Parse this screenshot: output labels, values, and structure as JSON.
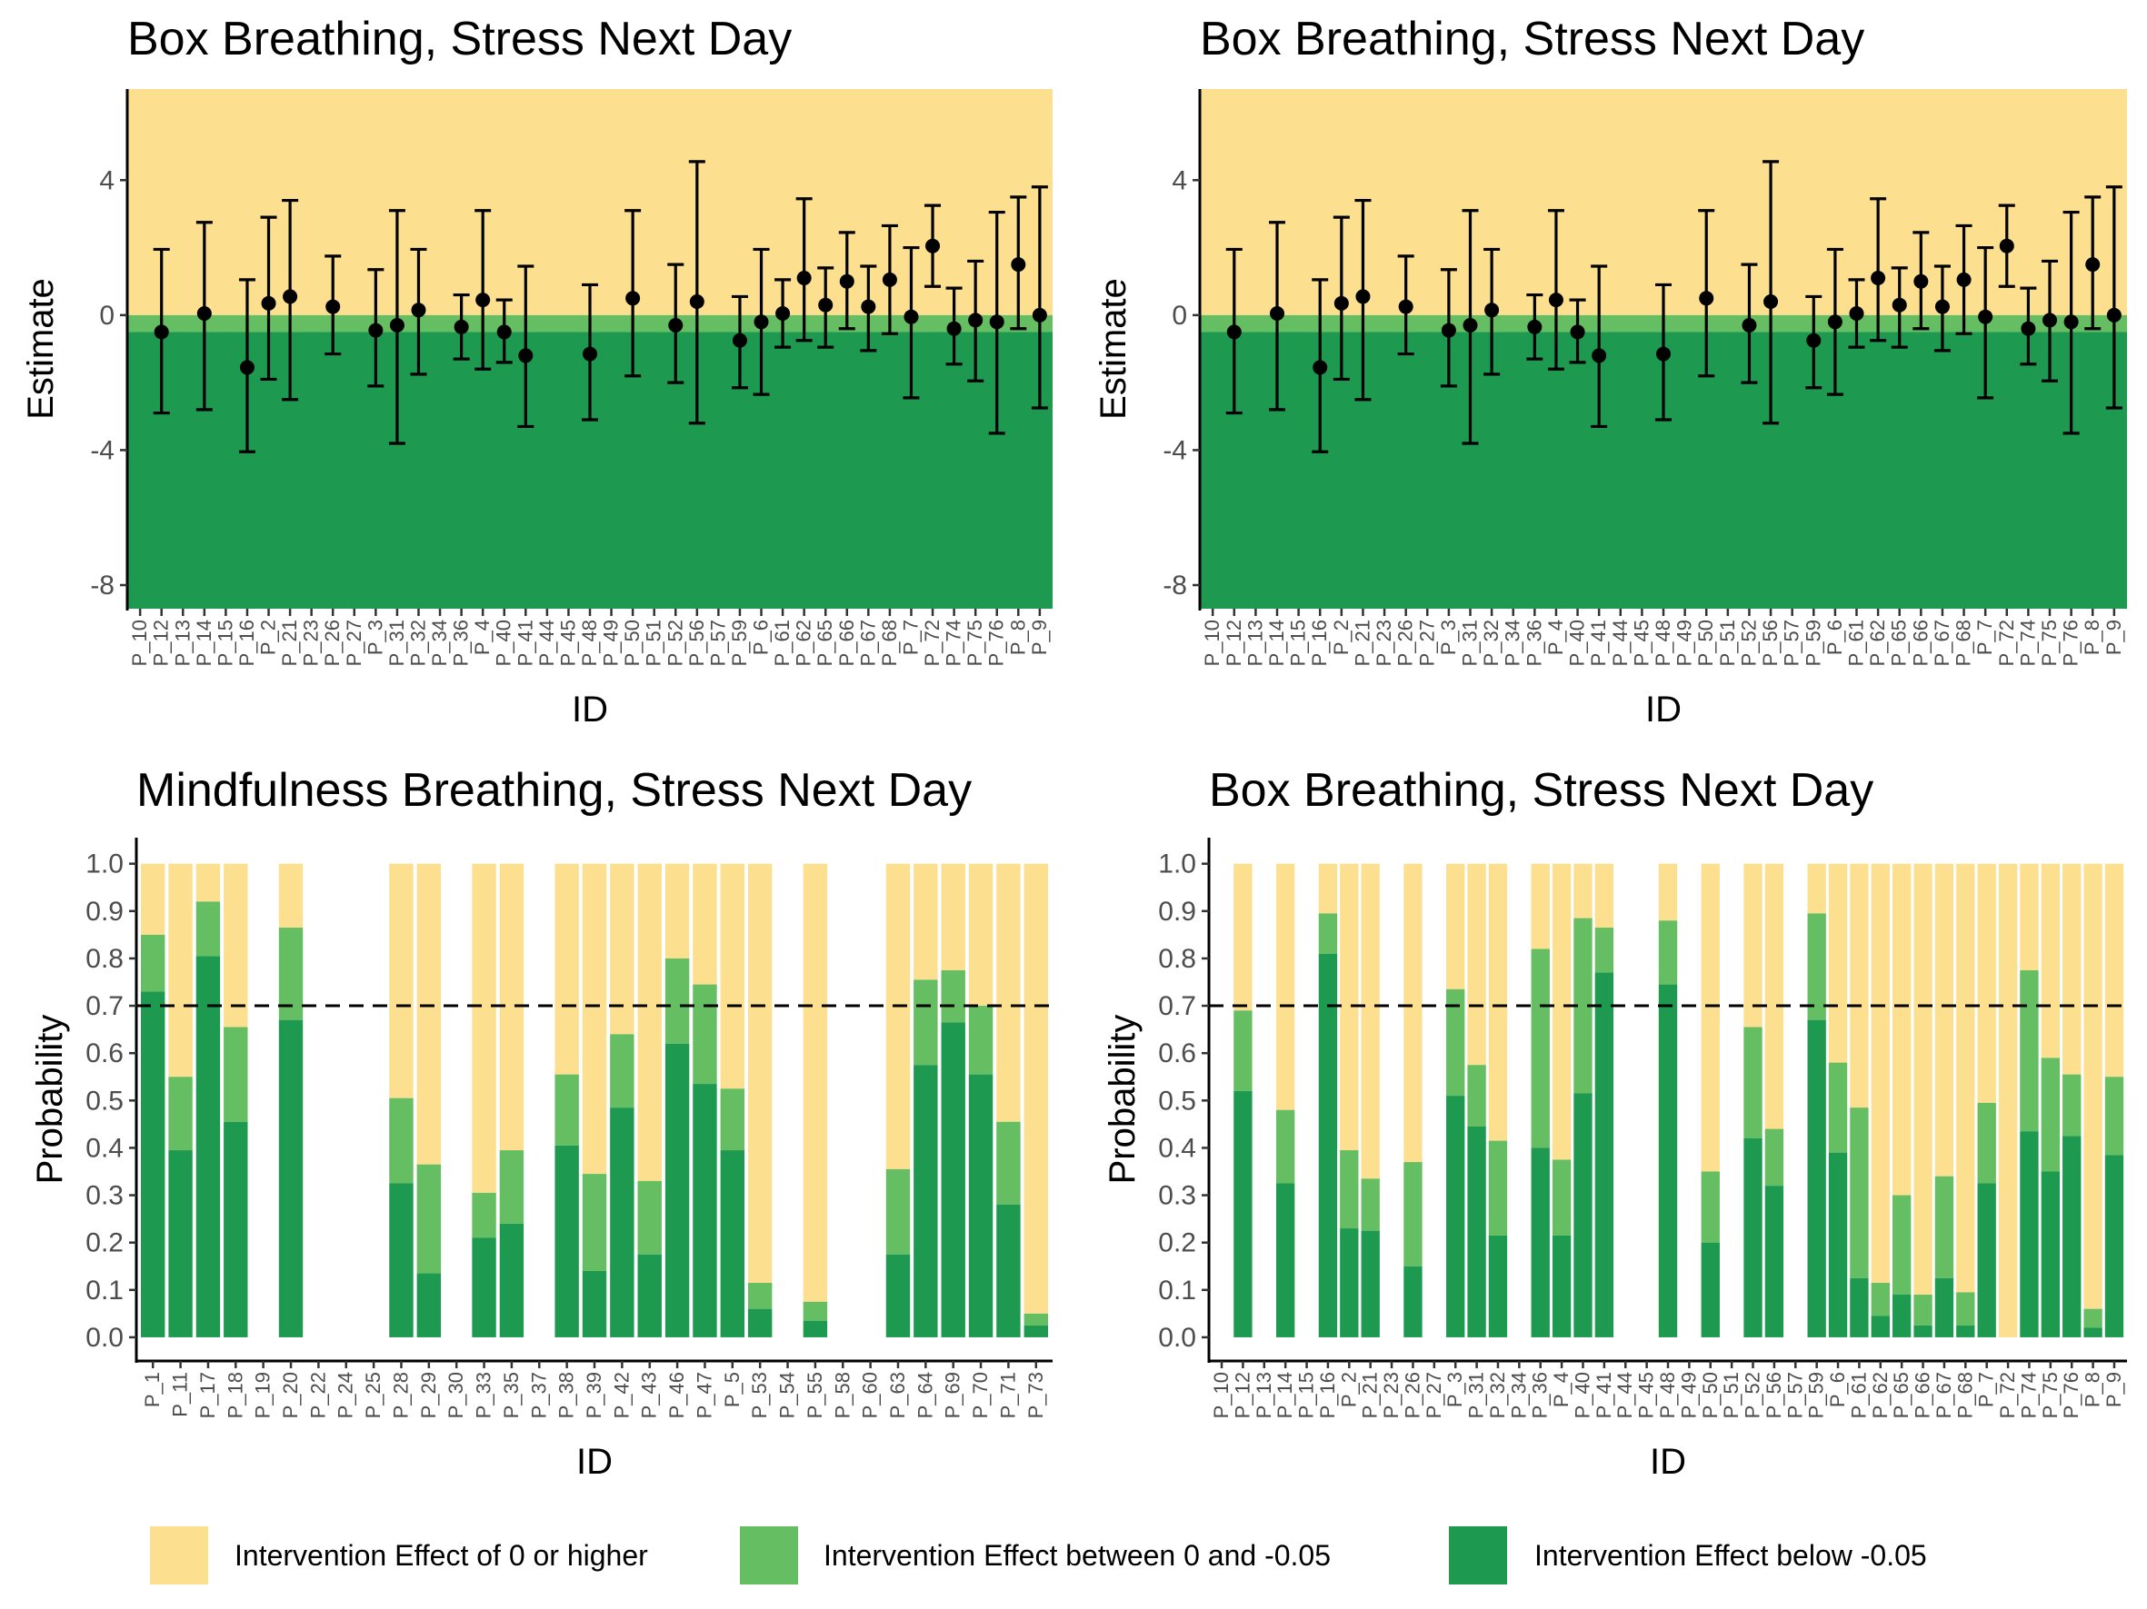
{
  "colors": {
    "high": "#FDDF90",
    "mid": "#66BE62",
    "low": "#1E9A50",
    "point": "#000000",
    "threshold_line": "#000000"
  },
  "legend": {
    "placement": "bottom",
    "items": [
      {
        "key": "high",
        "label": "Intervention Effect of 0 or higher"
      },
      {
        "key": "mid",
        "label": "Intervention Effect between 0 and -0.05"
      },
      {
        "key": "low",
        "label": "Intervention Effect below -0.05"
      }
    ]
  },
  "chart_data": [
    {
      "type": "scatter",
      "title": "Box Breathing, Stress Next Day",
      "xlabel": "ID",
      "ylabel": "Estimate",
      "ylim": [
        -8.7,
        6.7
      ],
      "yticks": [
        4,
        0,
        -4,
        -8
      ],
      "bands": [
        {
          "from": 0,
          "to": 6.7,
          "color": "high"
        },
        {
          "from": -0.5,
          "to": 0,
          "color": "mid"
        },
        {
          "from": -8.7,
          "to": -0.5,
          "color": "low"
        }
      ],
      "categories": [
        "P_10",
        "P_12",
        "P_13",
        "P_14",
        "P_15",
        "P_16",
        "P_2",
        "P_21",
        "P_23",
        "P_26",
        "P_27",
        "P_3",
        "P_31",
        "P_32",
        "P_34",
        "P_36",
        "P_4",
        "P_40",
        "P_41",
        "P_44",
        "P_45",
        "P_48",
        "P_49",
        "P_50",
        "P_51",
        "P_52",
        "P_56",
        "P_57",
        "P_59",
        "P_6",
        "P_61",
        "P_62",
        "P_65",
        "P_66",
        "P_67",
        "P_68",
        "P_7",
        "P_72",
        "P_74",
        "P_75",
        "P_76",
        "P_8",
        "P_9"
      ],
      "points": [
        {
          "id": "P_12",
          "y": -0.5,
          "lo": -2.9,
          "hi": 1.95
        },
        {
          "id": "P_14",
          "y": 0.05,
          "lo": -2.8,
          "hi": 2.75
        },
        {
          "id": "P_16",
          "y": -1.55,
          "lo": -4.05,
          "hi": 1.05
        },
        {
          "id": "P_2",
          "y": 0.35,
          "lo": -1.9,
          "hi": 2.9
        },
        {
          "id": "P_21",
          "y": 0.55,
          "lo": -2.5,
          "hi": 3.4
        },
        {
          "id": "P_26",
          "y": 0.25,
          "lo": -1.15,
          "hi": 1.75
        },
        {
          "id": "P_3",
          "y": -0.45,
          "lo": -2.1,
          "hi": 1.35
        },
        {
          "id": "P_31",
          "y": -0.3,
          "lo": -3.8,
          "hi": 3.1
        },
        {
          "id": "P_32",
          "y": 0.15,
          "lo": -1.75,
          "hi": 1.95
        },
        {
          "id": "P_36",
          "y": -0.35,
          "lo": -1.3,
          "hi": 0.6
        },
        {
          "id": "P_4",
          "y": 0.45,
          "lo": -1.6,
          "hi": 3.1
        },
        {
          "id": "P_40",
          "y": -0.5,
          "lo": -1.4,
          "hi": 0.45
        },
        {
          "id": "P_41",
          "y": -1.2,
          "lo": -3.3,
          "hi": 1.45
        },
        {
          "id": "P_48",
          "y": -1.15,
          "lo": -3.1,
          "hi": 0.9
        },
        {
          "id": "P_50",
          "y": 0.5,
          "lo": -1.8,
          "hi": 3.1
        },
        {
          "id": "P_52",
          "y": -0.3,
          "lo": -2.0,
          "hi": 1.5
        },
        {
          "id": "P_56",
          "y": 0.4,
          "lo": -3.2,
          "hi": 4.55
        },
        {
          "id": "P_59",
          "y": -0.75,
          "lo": -2.15,
          "hi": 0.55
        },
        {
          "id": "P_6",
          "y": -0.2,
          "lo": -2.35,
          "hi": 1.95
        },
        {
          "id": "P_61",
          "y": 0.05,
          "lo": -0.95,
          "hi": 1.05
        },
        {
          "id": "P_62",
          "y": 1.1,
          "lo": -0.75,
          "hi": 3.45
        },
        {
          "id": "P_65",
          "y": 0.3,
          "lo": -0.95,
          "hi": 1.4
        },
        {
          "id": "P_66",
          "y": 1.0,
          "lo": -0.4,
          "hi": 2.45
        },
        {
          "id": "P_67",
          "y": 0.25,
          "lo": -1.05,
          "hi": 1.45
        },
        {
          "id": "P_68",
          "y": 1.05,
          "lo": -0.55,
          "hi": 2.65
        },
        {
          "id": "P_7",
          "y": -0.05,
          "lo": -2.45,
          "hi": 2.0
        },
        {
          "id": "P_72",
          "y": 2.05,
          "lo": 0.85,
          "hi": 3.25
        },
        {
          "id": "P_74",
          "y": -0.4,
          "lo": -1.45,
          "hi": 0.8
        },
        {
          "id": "P_75",
          "y": -0.15,
          "lo": -1.95,
          "hi": 1.6
        },
        {
          "id": "P_76",
          "y": -0.2,
          "lo": -3.5,
          "hi": 3.05
        },
        {
          "id": "P_8",
          "y": 1.5,
          "lo": -0.4,
          "hi": 3.5
        },
        {
          "id": "P_9",
          "y": 0.0,
          "lo": -2.75,
          "hi": 3.8
        }
      ]
    },
    {
      "type": "scatter",
      "title": "Box Breathing, Stress Next Day",
      "xlabel": "ID",
      "ylabel": "Estimate",
      "ylim": [
        -8.7,
        6.7
      ],
      "yticks": [
        4,
        0,
        -4,
        -8
      ],
      "bands": [
        {
          "from": 0,
          "to": 6.7,
          "color": "high"
        },
        {
          "from": -0.5,
          "to": 0,
          "color": "mid"
        },
        {
          "from": -8.7,
          "to": -0.5,
          "color": "low"
        }
      ],
      "categories": [
        "P_10",
        "P_12",
        "P_13",
        "P_14",
        "P_15",
        "P_16",
        "P_2",
        "P_21",
        "P_23",
        "P_26",
        "P_27",
        "P_3",
        "P_31",
        "P_32",
        "P_34",
        "P_36",
        "P_4",
        "P_40",
        "P_41",
        "P_44",
        "P_45",
        "P_48",
        "P_49",
        "P_50",
        "P_51",
        "P_52",
        "P_56",
        "P_57",
        "P_59",
        "P_6",
        "P_61",
        "P_62",
        "P_65",
        "P_66",
        "P_67",
        "P_68",
        "P_7",
        "P_72",
        "P_74",
        "P_75",
        "P_76",
        "P_8",
        "P_9"
      ],
      "points": [
        {
          "id": "P_12",
          "y": -0.5,
          "lo": -2.9,
          "hi": 1.95
        },
        {
          "id": "P_14",
          "y": 0.05,
          "lo": -2.8,
          "hi": 2.75
        },
        {
          "id": "P_16",
          "y": -1.55,
          "lo": -4.05,
          "hi": 1.05
        },
        {
          "id": "P_2",
          "y": 0.35,
          "lo": -1.9,
          "hi": 2.9
        },
        {
          "id": "P_21",
          "y": 0.55,
          "lo": -2.5,
          "hi": 3.4
        },
        {
          "id": "P_26",
          "y": 0.25,
          "lo": -1.15,
          "hi": 1.75
        },
        {
          "id": "P_3",
          "y": -0.45,
          "lo": -2.1,
          "hi": 1.35
        },
        {
          "id": "P_31",
          "y": -0.3,
          "lo": -3.8,
          "hi": 3.1
        },
        {
          "id": "P_32",
          "y": 0.15,
          "lo": -1.75,
          "hi": 1.95
        },
        {
          "id": "P_36",
          "y": -0.35,
          "lo": -1.3,
          "hi": 0.6
        },
        {
          "id": "P_4",
          "y": 0.45,
          "lo": -1.6,
          "hi": 3.1
        },
        {
          "id": "P_40",
          "y": -0.5,
          "lo": -1.4,
          "hi": 0.45
        },
        {
          "id": "P_41",
          "y": -1.2,
          "lo": -3.3,
          "hi": 1.45
        },
        {
          "id": "P_48",
          "y": -1.15,
          "lo": -3.1,
          "hi": 0.9
        },
        {
          "id": "P_50",
          "y": 0.5,
          "lo": -1.8,
          "hi": 3.1
        },
        {
          "id": "P_52",
          "y": -0.3,
          "lo": -2.0,
          "hi": 1.5
        },
        {
          "id": "P_56",
          "y": 0.4,
          "lo": -3.2,
          "hi": 4.55
        },
        {
          "id": "P_59",
          "y": -0.75,
          "lo": -2.15,
          "hi": 0.55
        },
        {
          "id": "P_6",
          "y": -0.2,
          "lo": -2.35,
          "hi": 1.95
        },
        {
          "id": "P_61",
          "y": 0.05,
          "lo": -0.95,
          "hi": 1.05
        },
        {
          "id": "P_62",
          "y": 1.1,
          "lo": -0.75,
          "hi": 3.45
        },
        {
          "id": "P_65",
          "y": 0.3,
          "lo": -0.95,
          "hi": 1.4
        },
        {
          "id": "P_66",
          "y": 1.0,
          "lo": -0.4,
          "hi": 2.45
        },
        {
          "id": "P_67",
          "y": 0.25,
          "lo": -1.05,
          "hi": 1.45
        },
        {
          "id": "P_68",
          "y": 1.05,
          "lo": -0.55,
          "hi": 2.65
        },
        {
          "id": "P_7",
          "y": -0.05,
          "lo": -2.45,
          "hi": 2.0
        },
        {
          "id": "P_72",
          "y": 2.05,
          "lo": 0.85,
          "hi": 3.25
        },
        {
          "id": "P_74",
          "y": -0.4,
          "lo": -1.45,
          "hi": 0.8
        },
        {
          "id": "P_75",
          "y": -0.15,
          "lo": -1.95,
          "hi": 1.6
        },
        {
          "id": "P_76",
          "y": -0.2,
          "lo": -3.5,
          "hi": 3.05
        },
        {
          "id": "P_8",
          "y": 1.5,
          "lo": -0.4,
          "hi": 3.5
        },
        {
          "id": "P_9",
          "y": 0.0,
          "lo": -2.75,
          "hi": 3.8
        }
      ]
    },
    {
      "type": "bar",
      "stacked": true,
      "title": "Mindfulness Breathing, Stress Next Day",
      "xlabel": "ID",
      "ylabel": "Probability",
      "ylim": [
        -0.05,
        1.055
      ],
      "yticks": [
        0.0,
        0.1,
        0.2,
        0.3,
        0.4,
        0.5,
        0.6,
        0.7,
        0.8,
        0.9,
        1.0
      ],
      "threshold": 0.7,
      "categories": [
        "P_1",
        "P_11",
        "P_17",
        "P_18",
        "P_19",
        "P_20",
        "P_22",
        "P_24",
        "P_25",
        "P_28",
        "P_29",
        "P_30",
        "P_33",
        "P_35",
        "P_37",
        "P_38",
        "P_39",
        "P_42",
        "P_43",
        "P_46",
        "P_47",
        "P_5",
        "P_53",
        "P_54",
        "P_55",
        "P_58",
        "P_60",
        "P_63",
        "P_64",
        "P_69",
        "P_70",
        "P_71",
        "P_73"
      ],
      "bars": [
        {
          "id": "P_1",
          "low": 0.73,
          "mid_top": 0.85
        },
        {
          "id": "P_11",
          "low": 0.395,
          "mid_top": 0.55
        },
        {
          "id": "P_17",
          "low": 0.805,
          "mid_top": 0.92
        },
        {
          "id": "P_18",
          "low": 0.455,
          "mid_top": 0.655
        },
        {
          "id": "P_20",
          "low": 0.67,
          "mid_top": 0.865
        },
        {
          "id": "P_28",
          "low": 0.325,
          "mid_top": 0.505
        },
        {
          "id": "P_29",
          "low": 0.135,
          "mid_top": 0.365
        },
        {
          "id": "P_33",
          "low": 0.21,
          "mid_top": 0.305
        },
        {
          "id": "P_35",
          "low": 0.24,
          "mid_top": 0.395
        },
        {
          "id": "P_38",
          "low": 0.405,
          "mid_top": 0.555
        },
        {
          "id": "P_39",
          "low": 0.14,
          "mid_top": 0.345
        },
        {
          "id": "P_42",
          "low": 0.485,
          "mid_top": 0.64
        },
        {
          "id": "P_43",
          "low": 0.175,
          "mid_top": 0.33
        },
        {
          "id": "P_46",
          "low": 0.62,
          "mid_top": 0.8
        },
        {
          "id": "P_47",
          "low": 0.535,
          "mid_top": 0.745
        },
        {
          "id": "P_5",
          "low": 0.395,
          "mid_top": 0.525
        },
        {
          "id": "P_53",
          "low": 0.06,
          "mid_top": 0.115
        },
        {
          "id": "P_55",
          "low": 0.035,
          "mid_top": 0.075
        },
        {
          "id": "P_63",
          "low": 0.175,
          "mid_top": 0.355
        },
        {
          "id": "P_64",
          "low": 0.575,
          "mid_top": 0.755
        },
        {
          "id": "P_69",
          "low": 0.665,
          "mid_top": 0.775
        },
        {
          "id": "P_70",
          "low": 0.555,
          "mid_top": 0.7
        },
        {
          "id": "P_71",
          "low": 0.28,
          "mid_top": 0.455
        },
        {
          "id": "P_73",
          "low": 0.025,
          "mid_top": 0.05
        }
      ]
    },
    {
      "type": "bar",
      "stacked": true,
      "title": "Box Breathing, Stress Next Day",
      "xlabel": "ID",
      "ylabel": "Probability",
      "ylim": [
        -0.05,
        1.055
      ],
      "yticks": [
        0.0,
        0.1,
        0.2,
        0.3,
        0.4,
        0.5,
        0.6,
        0.7,
        0.8,
        0.9,
        1.0
      ],
      "threshold": 0.7,
      "categories": [
        "P_10",
        "P_12",
        "P_13",
        "P_14",
        "P_15",
        "P_16",
        "P_2",
        "P_21",
        "P_23",
        "P_26",
        "P_27",
        "P_3",
        "P_31",
        "P_32",
        "P_34",
        "P_36",
        "P_4",
        "P_40",
        "P_41",
        "P_44",
        "P_45",
        "P_48",
        "P_49",
        "P_50",
        "P_51",
        "P_52",
        "P_56",
        "P_57",
        "P_59",
        "P_6",
        "P_61",
        "P_62",
        "P_65",
        "P_66",
        "P_67",
        "P_68",
        "P_7",
        "P_72",
        "P_74",
        "P_75",
        "P_76",
        "P_8",
        "P_9"
      ],
      "bars": [
        {
          "id": "P_12",
          "low": 0.52,
          "mid_top": 0.69
        },
        {
          "id": "P_14",
          "low": 0.325,
          "mid_top": 0.48
        },
        {
          "id": "P_16",
          "low": 0.81,
          "mid_top": 0.895
        },
        {
          "id": "P_2",
          "low": 0.23,
          "mid_top": 0.395
        },
        {
          "id": "P_21",
          "low": 0.225,
          "mid_top": 0.335
        },
        {
          "id": "P_26",
          "low": 0.15,
          "mid_top": 0.37
        },
        {
          "id": "P_3",
          "low": 0.51,
          "mid_top": 0.735
        },
        {
          "id": "P_31",
          "low": 0.445,
          "mid_top": 0.575
        },
        {
          "id": "P_32",
          "low": 0.215,
          "mid_top": 0.415
        },
        {
          "id": "P_36",
          "low": 0.4,
          "mid_top": 0.82
        },
        {
          "id": "P_4",
          "low": 0.215,
          "mid_top": 0.375
        },
        {
          "id": "P_40",
          "low": 0.515,
          "mid_top": 0.885
        },
        {
          "id": "P_41",
          "low": 0.77,
          "mid_top": 0.865
        },
        {
          "id": "P_48",
          "low": 0.745,
          "mid_top": 0.88
        },
        {
          "id": "P_50",
          "low": 0.2,
          "mid_top": 0.35
        },
        {
          "id": "P_52",
          "low": 0.42,
          "mid_top": 0.655
        },
        {
          "id": "P_56",
          "low": 0.32,
          "mid_top": 0.44
        },
        {
          "id": "P_59",
          "low": 0.67,
          "mid_top": 0.895
        },
        {
          "id": "P_6",
          "low": 0.39,
          "mid_top": 0.58
        },
        {
          "id": "P_61",
          "low": 0.125,
          "mid_top": 0.485
        },
        {
          "id": "P_62",
          "low": 0.045,
          "mid_top": 0.115
        },
        {
          "id": "P_65",
          "low": 0.09,
          "mid_top": 0.3
        },
        {
          "id": "P_66",
          "low": 0.025,
          "mid_top": 0.09
        },
        {
          "id": "P_67",
          "low": 0.125,
          "mid_top": 0.34
        },
        {
          "id": "P_68",
          "low": 0.025,
          "mid_top": 0.095
        },
        {
          "id": "P_7",
          "low": 0.325,
          "mid_top": 0.495
        },
        {
          "id": "P_72",
          "low": 0.0,
          "mid_top": 0.0
        },
        {
          "id": "P_74",
          "low": 0.435,
          "mid_top": 0.775
        },
        {
          "id": "P_75",
          "low": 0.35,
          "mid_top": 0.59
        },
        {
          "id": "P_76",
          "low": 0.425,
          "mid_top": 0.555
        },
        {
          "id": "P_8",
          "low": 0.02,
          "mid_top": 0.06
        },
        {
          "id": "P_9",
          "low": 0.385,
          "mid_top": 0.55
        }
      ]
    }
  ]
}
